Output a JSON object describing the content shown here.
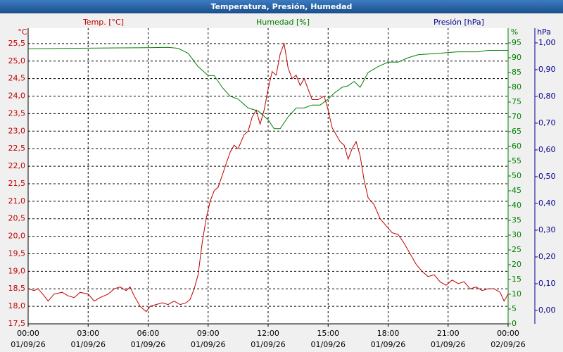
{
  "chart_data": {
    "type": "line",
    "title": "Temperatura, Presión, Humedad",
    "y_unit": "°C",
    "y2_unit": "%",
    "y3_unit": "hPa",
    "y3_label": "Presión [hPa]",
    "y3_color": "#00008b",
    "xlim": [
      0,
      24
    ],
    "xticks": [
      {
        "value": 0,
        "label": "00:00"
      },
      {
        "value": 3,
        "label": "03:00"
      },
      {
        "value": 6,
        "label": "06:00"
      },
      {
        "value": 9,
        "label": "09:00"
      },
      {
        "value": 12,
        "label": "12:00"
      },
      {
        "value": 15,
        "label": "15:00"
      },
      {
        "value": 18,
        "label": "18:00"
      },
      {
        "value": 21,
        "label": "21:00"
      },
      {
        "value": 24,
        "label": "00:00"
      }
    ],
    "xtick_dates": [
      "01/09/26",
      "01/09/26",
      "01/09/26",
      "01/09/26",
      "01/09/26",
      "01/09/26",
      "01/09/26",
      "01/09/26",
      "02/09/26"
    ],
    "ylim": [
      17.5,
      25.94
    ],
    "yticks": [
      {
        "value": 17.5,
        "label": "17,5"
      },
      {
        "value": 18,
        "label": "18,0"
      },
      {
        "value": 18.5,
        "label": "18,5"
      },
      {
        "value": 19,
        "label": "19,0"
      },
      {
        "value": 19.5,
        "label": "19,5"
      },
      {
        "value": 20,
        "label": "20,0"
      },
      {
        "value": 20.5,
        "label": "20,5"
      },
      {
        "value": 21,
        "label": "21,0"
      },
      {
        "value": 21.5,
        "label": "21,5"
      },
      {
        "value": 22,
        "label": "22,0"
      },
      {
        "value": 22.5,
        "label": "22,5"
      },
      {
        "value": 23,
        "label": "23,0"
      },
      {
        "value": 23.5,
        "label": "23,5"
      },
      {
        "value": 24,
        "label": "24,0"
      },
      {
        "value": 24.5,
        "label": "24,5"
      },
      {
        "value": 25,
        "label": "25,0"
      },
      {
        "value": 25.5,
        "label": "25,5"
      }
    ],
    "y2lim": [
      0,
      100
    ],
    "y2ticks": [
      0,
      5,
      10,
      15,
      20,
      25,
      30,
      35,
      40,
      45,
      50,
      55,
      60,
      65,
      70,
      75,
      80,
      85,
      90,
      95
    ],
    "y3lim": [
      -0.05,
      1.055
    ],
    "y3ticks": [
      {
        "value": 0,
        "label": "0,00"
      },
      {
        "value": 0.1,
        "label": "0,10"
      },
      {
        "value": 0.2,
        "label": "0,20"
      },
      {
        "value": 0.3,
        "label": "0,30"
      },
      {
        "value": 0.4,
        "label": "0,40"
      },
      {
        "value": 0.5,
        "label": "0,50"
      },
      {
        "value": 0.6,
        "label": "0,60"
      },
      {
        "value": 0.7,
        "label": "0,70"
      },
      {
        "value": 0.8,
        "label": "0,80"
      },
      {
        "value": 0.9,
        "label": "0,90"
      },
      {
        "value": 1,
        "label": "1,00"
      }
    ],
    "grid": true,
    "series": [
      {
        "name": "Temp. [°C]",
        "color": "#c00000",
        "axis": "y",
        "x": [
          0.0,
          0.3,
          0.5,
          0.8,
          1.0,
          1.3,
          1.7,
          2.0,
          2.3,
          2.6,
          3.0,
          3.3,
          3.6,
          4.0,
          4.3,
          4.6,
          4.9,
          5.1,
          5.3,
          5.6,
          5.9,
          6.1,
          6.4,
          6.7,
          7.0,
          7.3,
          7.6,
          7.9,
          8.1,
          8.3,
          8.5,
          8.7,
          8.9,
          9.1,
          9.3,
          9.5,
          9.8,
          10.1,
          10.3,
          10.5,
          10.8,
          11.0,
          11.2,
          11.4,
          11.6,
          11.8,
          12.0,
          12.2,
          12.4,
          12.6,
          12.8,
          13.0,
          13.2,
          13.4,
          13.6,
          13.8,
          14.0,
          14.2,
          14.5,
          14.8,
          15.0,
          15.2,
          15.4,
          15.6,
          15.8,
          16.0,
          16.2,
          16.4,
          16.6,
          16.8,
          17.0,
          17.3,
          17.6,
          17.9,
          18.2,
          18.5,
          18.8,
          19.1,
          19.4,
          19.7,
          20.0,
          20.3,
          20.6,
          20.9,
          21.2,
          21.5,
          21.8,
          22.1,
          22.4,
          22.7,
          23.0,
          23.3,
          23.6,
          23.8,
          24.0
        ],
        "values": [
          18.5,
          18.45,
          18.5,
          18.3,
          18.15,
          18.35,
          18.4,
          18.3,
          18.25,
          18.4,
          18.35,
          18.15,
          18.25,
          18.35,
          18.5,
          18.55,
          18.45,
          18.55,
          18.3,
          18.0,
          17.85,
          18.0,
          18.05,
          18.1,
          18.05,
          18.15,
          18.05,
          18.1,
          18.2,
          18.5,
          18.9,
          19.8,
          20.5,
          21.0,
          21.3,
          21.4,
          21.9,
          22.4,
          22.6,
          22.5,
          22.9,
          23.0,
          23.4,
          23.6,
          23.2,
          23.6,
          24.2,
          24.7,
          24.6,
          25.2,
          25.5,
          24.8,
          24.5,
          24.6,
          24.3,
          24.5,
          24.2,
          23.9,
          23.9,
          24.0,
          23.6,
          23.1,
          22.9,
          22.7,
          22.6,
          22.2,
          22.5,
          22.7,
          22.3,
          21.6,
          21.1,
          20.9,
          20.5,
          20.3,
          20.1,
          20.05,
          19.8,
          19.5,
          19.2,
          19.0,
          18.85,
          18.9,
          18.7,
          18.6,
          18.75,
          18.65,
          18.7,
          18.5,
          18.55,
          18.45,
          18.5,
          18.5,
          18.4,
          18.15,
          18.35
        ]
      },
      {
        "name": "Humedad [%]",
        "color": "#008000",
        "axis": "y2",
        "x": [
          0.0,
          2.0,
          4.0,
          6.0,
          7.0,
          7.5,
          8.0,
          8.5,
          9.0,
          9.3,
          9.7,
          10.1,
          10.5,
          11.0,
          11.5,
          12.0,
          12.3,
          12.6,
          13.0,
          13.4,
          13.8,
          14.2,
          14.6,
          15.0,
          15.3,
          15.7,
          16.0,
          16.3,
          16.6,
          17.0,
          17.5,
          18.0,
          18.5,
          19.0,
          19.5,
          20.5,
          21.5,
          22.5,
          23.0,
          24.0
        ],
        "values": [
          93,
          93.2,
          93.3,
          93.4,
          93.5,
          93.2,
          91.5,
          87,
          84,
          84,
          80,
          77,
          76,
          73,
          72,
          69,
          66,
          66,
          70,
          73,
          73,
          74,
          74,
          76,
          78,
          80,
          80.5,
          82,
          80,
          85,
          87,
          88.5,
          88.5,
          90,
          91,
          91.5,
          92,
          92,
          92.5,
          92.5
        ]
      }
    ]
  }
}
